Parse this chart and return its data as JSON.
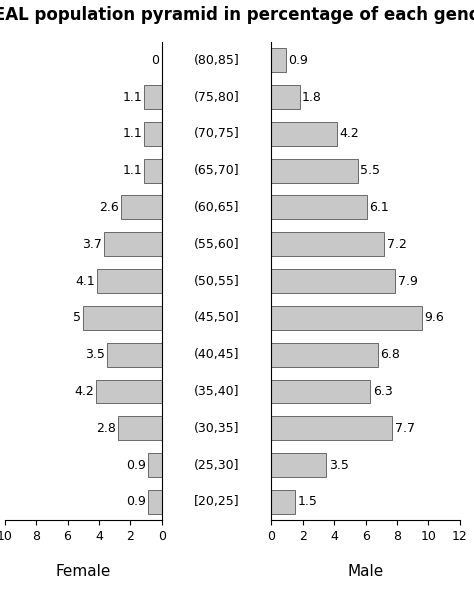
{
  "title": "IDEAL population pyramid in percentage of each gender",
  "age_groups": [
    "(80,85]",
    "(75,80]",
    "(70,75]",
    "(65,70]",
    "(60,65]",
    "(55,60]",
    "(50,55]",
    "(45,50]",
    "(40,45]",
    "(35,40]",
    "(30,35]",
    "(25,30]",
    "[20,25]"
  ],
  "female": [
    0,
    1.1,
    1.1,
    1.1,
    2.6,
    3.7,
    4.1,
    5,
    3.5,
    4.2,
    2.8,
    0.9,
    0.9
  ],
  "male": [
    0.9,
    1.8,
    4.2,
    5.5,
    6.1,
    7.2,
    7.9,
    9.6,
    6.8,
    6.3,
    7.7,
    3.5,
    1.5
  ],
  "bar_color": "#c8c8c8",
  "bar_edge_color": "#555555",
  "background_color": "#ffffff",
  "female_ticks": [
    10,
    8,
    6,
    4,
    2,
    0
  ],
  "male_ticks": [
    0,
    2,
    4,
    6,
    8,
    10,
    12
  ],
  "xlabel_female": "Female",
  "xlabel_male": "Male",
  "title_fontsize": 12,
  "label_fontsize": 9,
  "tick_fontsize": 9
}
